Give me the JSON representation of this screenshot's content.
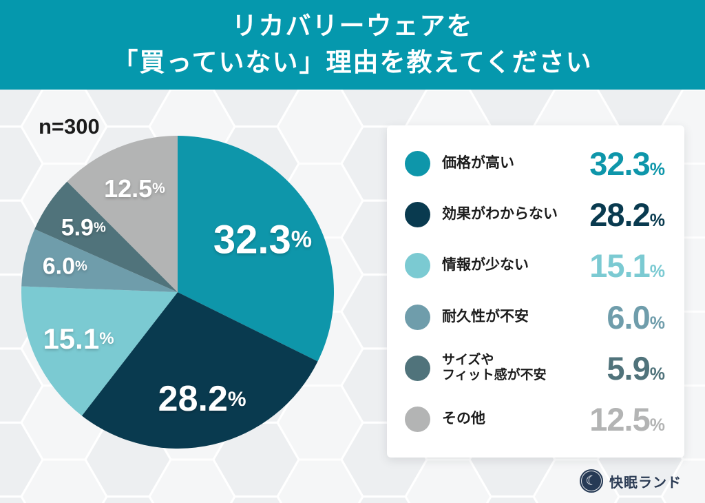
{
  "header": {
    "title_line1": "リカバリーウェアを",
    "title_line2": "「買っていない」理由を教えてください",
    "band_color": "#0598ad"
  },
  "sample_label": "n=300",
  "chart_data": {
    "type": "pie",
    "title": "リカバリーウェアを「買っていない」理由を教えてください",
    "sample_size_label": "n=300",
    "start_angle_deg": 0,
    "direction": "clockwise",
    "slices": [
      {
        "label": "価格が高い",
        "value": 32.3,
        "display": "32.3",
        "color": "#0e96aa"
      },
      {
        "label": "効果がわからない",
        "value": 28.2,
        "display": "28.2",
        "color": "#093a4f"
      },
      {
        "label": "情報が少ない",
        "value": 15.1,
        "display": "15.1",
        "color": "#7bcad2"
      },
      {
        "label": "耐久性が不安",
        "value": 6.0,
        "display": "6.0",
        "color": "#6f9dab"
      },
      {
        "label": "サイズやフィット感が不安",
        "value": 5.9,
        "display": "5.9",
        "color": "#50737b"
      },
      {
        "label": "その他",
        "value": 12.5,
        "display": "12.5",
        "color": "#b3b4b4"
      }
    ],
    "unit": "%",
    "legend_position": "right"
  },
  "legend": {
    "items": [
      {
        "label": "価格が高い",
        "label2": "",
        "num": "32.3",
        "unit": "%",
        "color": "#0e96aa"
      },
      {
        "label": "効果がわからない",
        "label2": "",
        "num": "28.2",
        "unit": "%",
        "color": "#093a4f"
      },
      {
        "label": "情報が少ない",
        "label2": "",
        "num": "15.1",
        "unit": "%",
        "color": "#7bcad2"
      },
      {
        "label": "耐久性が不安",
        "label2": "",
        "num": "6.0",
        "unit": "%",
        "color": "#6f9dab"
      },
      {
        "label": "サイズや",
        "label2": "フィット感が不安",
        "num": "5.9",
        "unit": "%",
        "color": "#50737b"
      },
      {
        "label": "その他",
        "label2": "",
        "num": "12.5",
        "unit": "%",
        "color": "#b3b4b4"
      }
    ]
  },
  "footer": {
    "brand": "快眠ランド",
    "badge_icon": "moon-icon"
  },
  "colors": {
    "background": "#edeff1",
    "card": "#ffffff",
    "text_dark": "#1c1c1c"
  }
}
